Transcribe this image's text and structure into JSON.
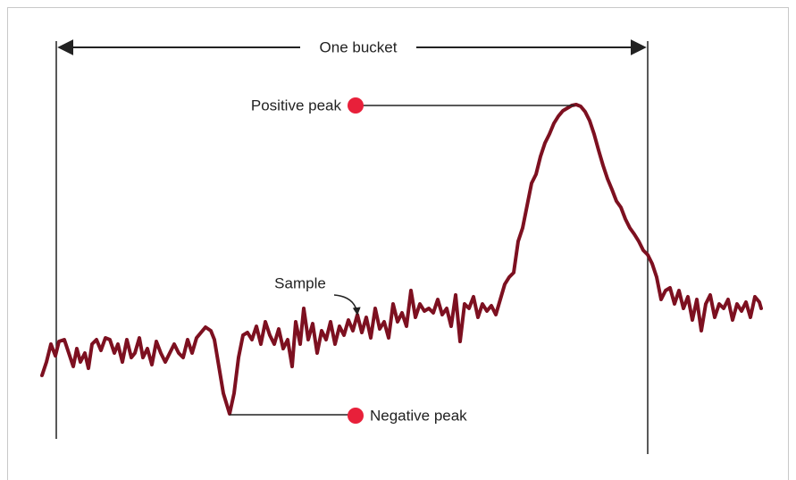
{
  "labels": {
    "bucket": "One bucket",
    "positive_peak": "Positive peak",
    "negative_peak": "Negative peak",
    "sample": "Sample"
  }
}
